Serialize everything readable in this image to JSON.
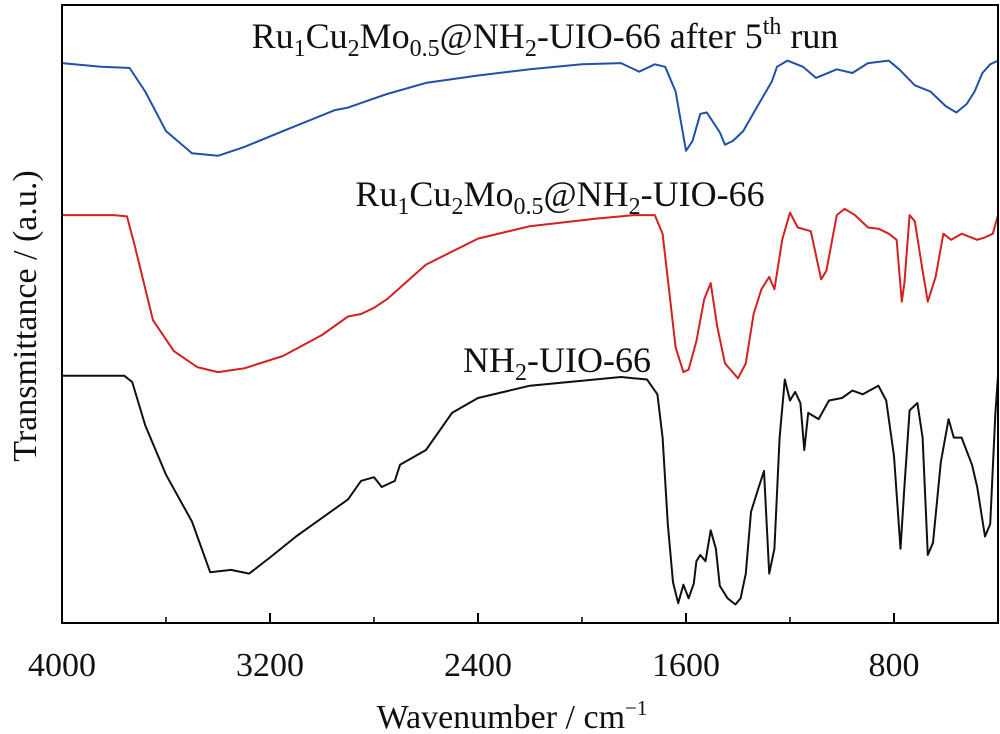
{
  "chart_data": {
    "type": "line",
    "title": "",
    "xlabel": "Wavenumber / cm",
    "xlabel_sup": "−1",
    "ylabel": "Transmittance / (a.u.)",
    "xlim": [
      4000,
      400
    ],
    "x_reversed": true,
    "ylim": [
      0,
      100
    ],
    "y_ticks_shown": false,
    "grid": false,
    "legend": "none",
    "x_ticks": [
      {
        "value": 4000,
        "label": "4000"
      },
      {
        "value": 3200,
        "label": "3200"
      },
      {
        "value": 2400,
        "label": "2400"
      },
      {
        "value": 1600,
        "label": "1600"
      },
      {
        "value": 800,
        "label": "800"
      }
    ],
    "x_minor_ticks": [
      3600,
      2800,
      2000,
      1200,
      400
    ],
    "series": [
      {
        "color": "#2050a8",
        "label_parts": [
          {
            "t": "Ru",
            "s": ""
          },
          {
            "t": "1",
            "s": "sub"
          },
          {
            "t": "Cu",
            "s": ""
          },
          {
            "t": "2",
            "s": "sub"
          },
          {
            "t": "Mo",
            "s": ""
          },
          {
            "t": "0.5",
            "s": "sub"
          },
          {
            "t": "@NH",
            "s": ""
          },
          {
            "t": "2",
            "s": "sub"
          },
          {
            "t": "-UIO-66 after 5",
            "s": ""
          },
          {
            "t": "th",
            "s": "sup"
          },
          {
            "t": " run",
            "s": ""
          }
        ],
        "points": [
          [
            4000,
            90.6
          ],
          [
            3850,
            90.0
          ],
          [
            3740,
            89.8
          ],
          [
            3680,
            86.0
          ],
          [
            3600,
            79.6
          ],
          [
            3500,
            76.0
          ],
          [
            3400,
            75.6
          ],
          [
            3300,
            77.0
          ],
          [
            3150,
            79.6
          ],
          [
            2950,
            83.0
          ],
          [
            2900,
            83.4
          ],
          [
            2750,
            85.6
          ],
          [
            2600,
            87.4
          ],
          [
            2400,
            88.6
          ],
          [
            2200,
            89.6
          ],
          [
            2000,
            90.4
          ],
          [
            1850,
            90.6
          ],
          [
            1780,
            89.2
          ],
          [
            1720,
            90.4
          ],
          [
            1680,
            90.0
          ],
          [
            1640,
            86.0
          ],
          [
            1600,
            76.4
          ],
          [
            1575,
            78.0
          ],
          [
            1545,
            82.4
          ],
          [
            1520,
            82.6
          ],
          [
            1470,
            79.4
          ],
          [
            1450,
            77.4
          ],
          [
            1420,
            78.0
          ],
          [
            1380,
            79.6
          ],
          [
            1320,
            84.0
          ],
          [
            1270,
            87.6
          ],
          [
            1250,
            90.0
          ],
          [
            1210,
            91.0
          ],
          [
            1150,
            90.0
          ],
          [
            1100,
            88.2
          ],
          [
            1020,
            89.6
          ],
          [
            960,
            89.0
          ],
          [
            900,
            90.6
          ],
          [
            820,
            91.0
          ],
          [
            780,
            89.6
          ],
          [
            720,
            87.0
          ],
          [
            660,
            86.0
          ],
          [
            600,
            83.6
          ],
          [
            560,
            82.6
          ],
          [
            520,
            84.0
          ],
          [
            490,
            86.0
          ],
          [
            460,
            89.0
          ],
          [
            430,
            90.4
          ],
          [
            400,
            91.0
          ]
        ]
      },
      {
        "color": "#d42020",
        "label_parts": [
          {
            "t": "Ru",
            "s": ""
          },
          {
            "t": "1",
            "s": "sub"
          },
          {
            "t": "Cu",
            "s": ""
          },
          {
            "t": "2",
            "s": "sub"
          },
          {
            "t": "Mo",
            "s": ""
          },
          {
            "t": "0.5",
            "s": "sub"
          },
          {
            "t": "@NH",
            "s": ""
          },
          {
            "t": "2",
            "s": "sub"
          },
          {
            "t": "-UIO-66",
            "s": ""
          }
        ],
        "points": [
          [
            4000,
            66.0
          ],
          [
            3800,
            66.0
          ],
          [
            3750,
            65.8
          ],
          [
            3720,
            61.0
          ],
          [
            3650,
            49.0
          ],
          [
            3570,
            44.0
          ],
          [
            3480,
            41.4
          ],
          [
            3400,
            40.6
          ],
          [
            3300,
            41.2
          ],
          [
            3150,
            43.2
          ],
          [
            3000,
            46.6
          ],
          [
            2900,
            49.6
          ],
          [
            2850,
            50.0
          ],
          [
            2800,
            51.0
          ],
          [
            2750,
            52.4
          ],
          [
            2600,
            58.0
          ],
          [
            2400,
            62.2
          ],
          [
            2200,
            64.2
          ],
          [
            1950,
            65.4
          ],
          [
            1800,
            66.0
          ],
          [
            1720,
            66.0
          ],
          [
            1690,
            63.0
          ],
          [
            1660,
            52.0
          ],
          [
            1640,
            44.6
          ],
          [
            1610,
            40.6
          ],
          [
            1590,
            41.0
          ],
          [
            1560,
            45.6
          ],
          [
            1530,
            52.4
          ],
          [
            1505,
            55.0
          ],
          [
            1480,
            48.0
          ],
          [
            1450,
            42.0
          ],
          [
            1400,
            39.6
          ],
          [
            1370,
            42.0
          ],
          [
            1340,
            50.0
          ],
          [
            1310,
            54.0
          ],
          [
            1280,
            56.0
          ],
          [
            1260,
            54.0
          ],
          [
            1230,
            62.0
          ],
          [
            1200,
            66.4
          ],
          [
            1170,
            64.0
          ],
          [
            1120,
            63.4
          ],
          [
            1080,
            55.6
          ],
          [
            1060,
            57.0
          ],
          [
            1020,
            66.0
          ],
          [
            990,
            67.0
          ],
          [
            950,
            66.0
          ],
          [
            900,
            64.0
          ],
          [
            860,
            63.8
          ],
          [
            820,
            63.0
          ],
          [
            790,
            62.0
          ],
          [
            770,
            52.0
          ],
          [
            760,
            55.0
          ],
          [
            740,
            66.0
          ],
          [
            720,
            65.0
          ],
          [
            690,
            57.0
          ],
          [
            670,
            52.0
          ],
          [
            640,
            56.0
          ],
          [
            610,
            63.0
          ],
          [
            580,
            62.0
          ],
          [
            540,
            63.0
          ],
          [
            480,
            62.0
          ],
          [
            450,
            62.4
          ],
          [
            420,
            63.0
          ],
          [
            400,
            66.0
          ]
        ]
      },
      {
        "color": "#101010",
        "label_parts": [
          {
            "t": "NH",
            "s": ""
          },
          {
            "t": "2",
            "s": "sub"
          },
          {
            "t": "-UIO-66",
            "s": ""
          }
        ],
        "points": [
          [
            4000,
            40.0
          ],
          [
            3760,
            40.0
          ],
          [
            3730,
            39.0
          ],
          [
            3680,
            32.0
          ],
          [
            3600,
            24.0
          ],
          [
            3500,
            16.4
          ],
          [
            3430,
            8.2
          ],
          [
            3350,
            8.6
          ],
          [
            3280,
            8.0
          ],
          [
            3200,
            10.6
          ],
          [
            3100,
            14.0
          ],
          [
            3000,
            17.0
          ],
          [
            2900,
            20.0
          ],
          [
            2850,
            23.0
          ],
          [
            2800,
            23.6
          ],
          [
            2770,
            22.0
          ],
          [
            2720,
            23.0
          ],
          [
            2700,
            25.6
          ],
          [
            2600,
            28.0
          ],
          [
            2500,
            34.0
          ],
          [
            2400,
            36.4
          ],
          [
            2200,
            38.4
          ],
          [
            2000,
            39.2
          ],
          [
            1850,
            39.8
          ],
          [
            1750,
            39.4
          ],
          [
            1710,
            37.0
          ],
          [
            1690,
            30.0
          ],
          [
            1670,
            16.0
          ],
          [
            1650,
            6.6
          ],
          [
            1630,
            3.2
          ],
          [
            1610,
            6.2
          ],
          [
            1590,
            4.0
          ],
          [
            1570,
            6.4
          ],
          [
            1560,
            10.0
          ],
          [
            1545,
            11.0
          ],
          [
            1525,
            10.0
          ],
          [
            1505,
            15.0
          ],
          [
            1485,
            12.0
          ],
          [
            1470,
            6.0
          ],
          [
            1440,
            4.0
          ],
          [
            1410,
            3.0
          ],
          [
            1390,
            4.0
          ],
          [
            1370,
            8.0
          ],
          [
            1350,
            18.0
          ],
          [
            1320,
            22.0
          ],
          [
            1300,
            24.6
          ],
          [
            1280,
            8.0
          ],
          [
            1260,
            12.0
          ],
          [
            1240,
            30.0
          ],
          [
            1220,
            39.4
          ],
          [
            1200,
            36.0
          ],
          [
            1180,
            37.4
          ],
          [
            1160,
            35.6
          ],
          [
            1145,
            28.0
          ],
          [
            1130,
            34.0
          ],
          [
            1090,
            33.0
          ],
          [
            1050,
            36.0
          ],
          [
            1000,
            36.4
          ],
          [
            960,
            37.6
          ],
          [
            920,
            37.0
          ],
          [
            860,
            38.4
          ],
          [
            830,
            36.0
          ],
          [
            800,
            27.0
          ],
          [
            785,
            18.0
          ],
          [
            775,
            12.0
          ],
          [
            760,
            22.0
          ],
          [
            740,
            34.4
          ],
          [
            710,
            35.6
          ],
          [
            690,
            30.0
          ],
          [
            670,
            11.0
          ],
          [
            650,
            13.0
          ],
          [
            620,
            26.0
          ],
          [
            590,
            33.0
          ],
          [
            570,
            30.0
          ],
          [
            540,
            30.0
          ],
          [
            500,
            25.6
          ],
          [
            480,
            22.0
          ],
          [
            450,
            14.0
          ],
          [
            430,
            16.0
          ],
          [
            410,
            34.0
          ],
          [
            400,
            40.0
          ]
        ]
      }
    ]
  }
}
